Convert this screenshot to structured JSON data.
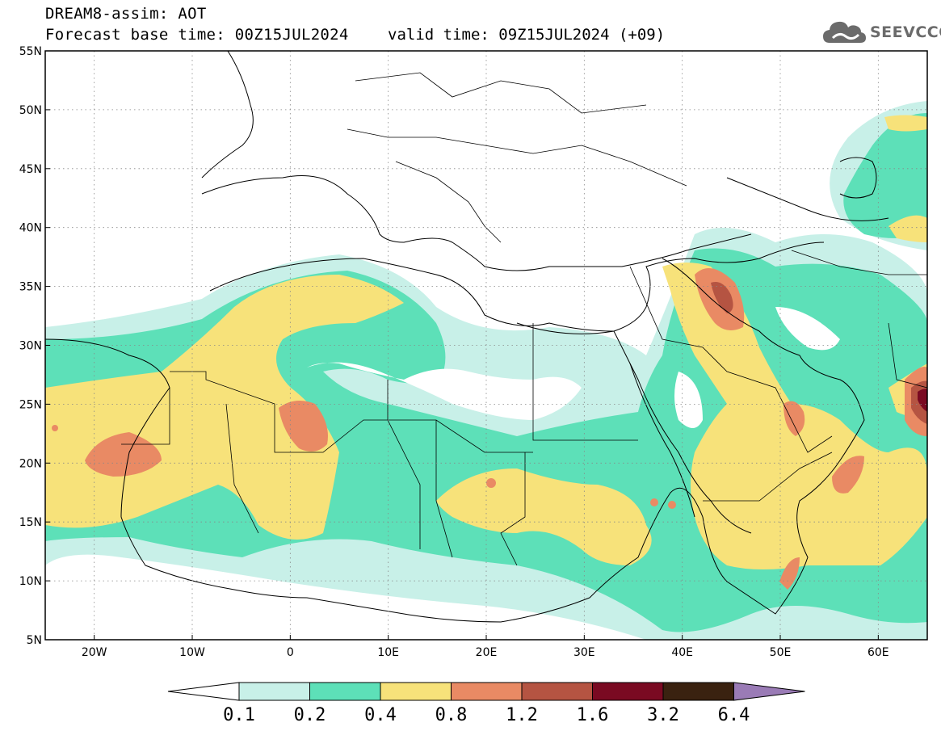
{
  "header": {
    "title": "DREAM8-assim: AOT",
    "forecast_base": "Forecast base time: 00Z15JUL2024",
    "valid_time": "valid time: 09Z15JUL2024 (+09)",
    "logo_text": "SEEVCCC",
    "logo_icon": "cloud-icon"
  },
  "map": {
    "lon_range": [
      -25,
      65
    ],
    "lat_range": [
      5,
      55
    ],
    "lat_ticks": [
      {
        "value": 55,
        "label": "55N"
      },
      {
        "value": 50,
        "label": "50N"
      },
      {
        "value": 45,
        "label": "45N"
      },
      {
        "value": 40,
        "label": "40N"
      },
      {
        "value": 35,
        "label": "35N"
      },
      {
        "value": 30,
        "label": "30N"
      },
      {
        "value": 25,
        "label": "25N"
      },
      {
        "value": 20,
        "label": "20N"
      },
      {
        "value": 15,
        "label": "15N"
      },
      {
        "value": 10,
        "label": "10N"
      },
      {
        "value": 5,
        "label": "5N"
      }
    ],
    "lon_ticks": [
      {
        "value": -20,
        "label": "20W"
      },
      {
        "value": -10,
        "label": "10W"
      },
      {
        "value": 0,
        "label": "0"
      },
      {
        "value": 10,
        "label": "10E"
      },
      {
        "value": 20,
        "label": "20E"
      },
      {
        "value": 30,
        "label": "30E"
      },
      {
        "value": 40,
        "label": "40E"
      },
      {
        "value": 50,
        "label": "50E"
      },
      {
        "value": 60,
        "label": "60E"
      }
    ],
    "grid": "dotted"
  },
  "colorbar": {
    "levels": [
      "0.1",
      "0.2",
      "0.4",
      "0.8",
      "1.2",
      "1.6",
      "3.2",
      "6.4"
    ],
    "colors": [
      "#ffffff",
      "#c8f0e8",
      "#5de0b8",
      "#f7e27a",
      "#e98a64",
      "#b55442",
      "#7a0a22",
      "#3a2210",
      "#9a7bb6"
    ]
  }
}
